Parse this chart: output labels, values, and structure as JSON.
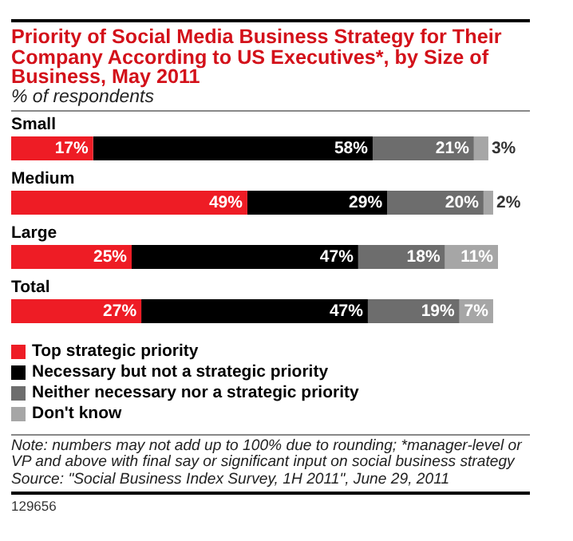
{
  "chart_data": {
    "type": "bar",
    "orientation": "horizontal",
    "stacked": true,
    "title": "Priority of Social Media Business Strategy for Their Company According to US Executives*, by Size of Business, May 2011",
    "subtitle": "% of respondents",
    "categories": [
      "Small",
      "Medium",
      "Large",
      "Total"
    ],
    "series": [
      {
        "name": "Top strategic priority",
        "color": "#ee1c25",
        "values": [
          17,
          49,
          25,
          27
        ],
        "value_labels": [
          "17%",
          "49%",
          "25%",
          "27%"
        ]
      },
      {
        "name": "Necessary but not a strategic priority",
        "color": "#000000",
        "values": [
          58,
          29,
          47,
          47
        ],
        "value_labels": [
          "58%",
          "29%",
          "47%",
          "47%"
        ]
      },
      {
        "name": "Neither necessary nor a strategic priority",
        "color": "#6d6d6d",
        "values": [
          21,
          20,
          18,
          19
        ],
        "value_labels": [
          "21%",
          "20%",
          "18%",
          "19%"
        ]
      },
      {
        "name": "Don't know",
        "color": "#a6a6a6",
        "values": [
          3,
          2,
          11,
          7
        ],
        "value_labels": [
          "3%",
          "2%",
          "11%",
          "7%"
        ]
      }
    ],
    "xlim": [
      0,
      101
    ],
    "tick_labels": "y",
    "legend": "bottom",
    "annotations": [
      "Note: numbers may not add up to 100% due to rounding; *manager-level or VP and above with final say or significant input on social business strategy",
      "Source: \"Social Business Index Survey, 1H 2011\", June 29, 2011",
      "129656"
    ]
  }
}
